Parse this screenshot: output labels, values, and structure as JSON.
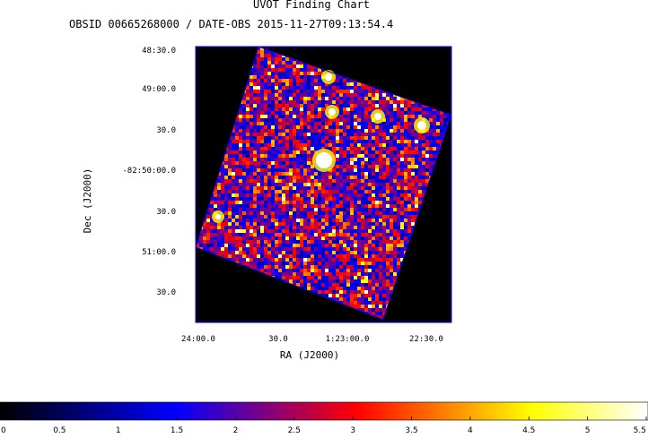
{
  "chart_data": {
    "type": "heatmap",
    "title": "UVOT Finding Chart",
    "subtitle": "OBSID 00665268000 / DATE-OBS 2015-11-27T09:13:54.4",
    "xlabel": "RA (J2000)",
    "ylabel": "Dec (J2000)",
    "x_ticks": [
      {
        "label": "24:00.0"
      },
      {
        "label": "30.0"
      },
      {
        "label": "1:23:00.0"
      },
      {
        "label": "22:30.0"
      }
    ],
    "y_ticks": [
      {
        "label": "48:30.0"
      },
      {
        "label": "49:00.0"
      },
      {
        "label": "30.0"
      },
      {
        "label": "-82:50:00.0"
      },
      {
        "label": "30.0"
      },
      {
        "label": "51:00.0"
      },
      {
        "label": "30.0"
      }
    ],
    "colorbar": {
      "colormap": "heat (black-blue-red-yellow-white)",
      "range": [
        0,
        5.5
      ],
      "ticks": [
        "0",
        "0.5",
        "1",
        "1.5",
        "2",
        "2.5",
        "3",
        "3.5",
        "4",
        "4.5",
        "5",
        "5.5"
      ]
    },
    "colors": {
      "frame": "#0000ff",
      "background": "#000000",
      "cmap_stops": [
        "#000000",
        "#0000ff",
        "#ff0000",
        "#ffff00",
        "#ffffff"
      ]
    }
  }
}
